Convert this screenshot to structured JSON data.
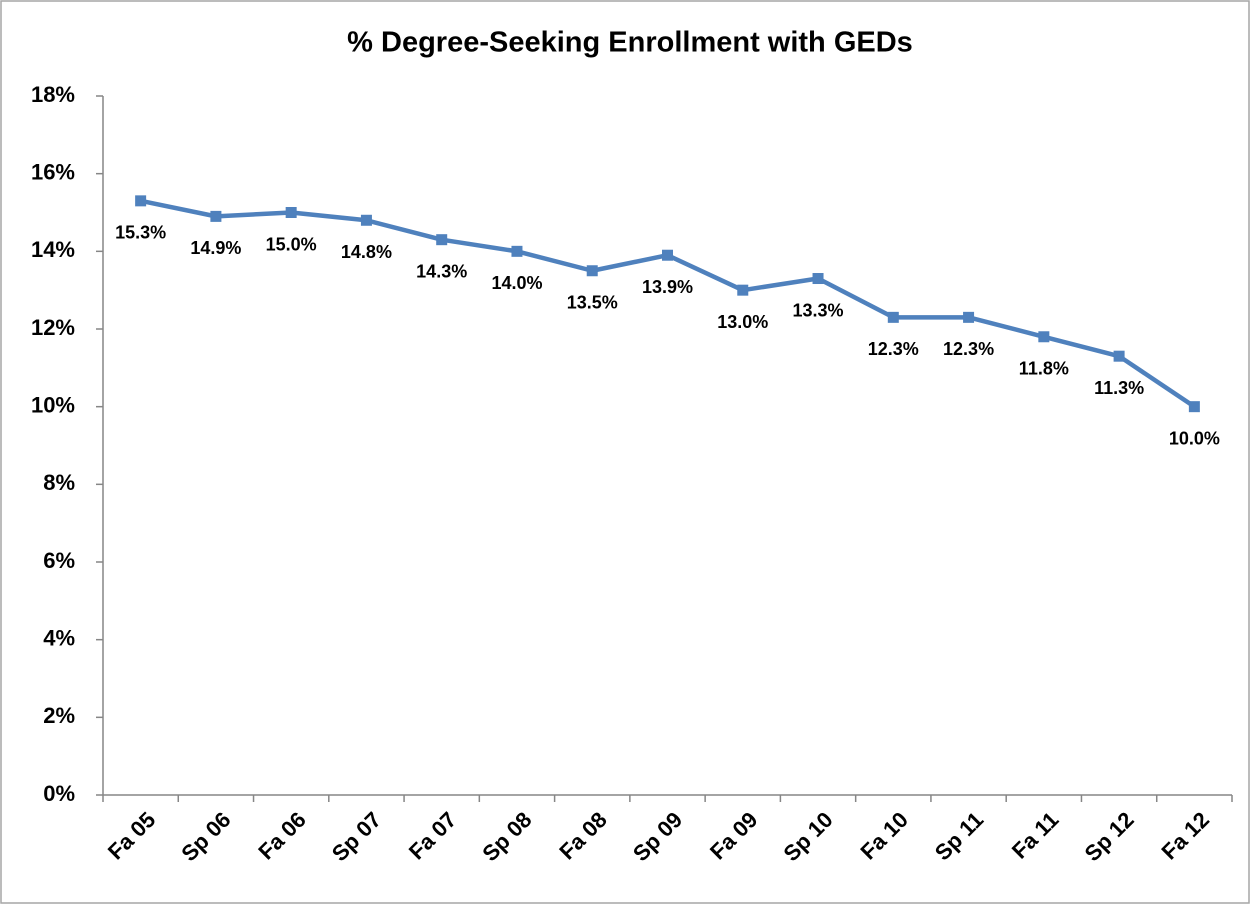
{
  "chart_data": {
    "type": "line",
    "title": "% Degree-Seeking Enrollment with GEDs",
    "categories": [
      "Fa 05",
      "Sp 06",
      "Fa 06",
      "Sp 07",
      "Fa 07",
      "Sp 08",
      "Fa 08",
      "Sp 09",
      "Fa 09",
      "Sp 10",
      "Fa 10",
      "Sp 11",
      "Fa 11",
      "Sp 12",
      "Fa 12"
    ],
    "values": [
      15.3,
      14.9,
      15.0,
      14.8,
      14.3,
      14.0,
      13.5,
      13.9,
      13.0,
      13.3,
      12.3,
      12.3,
      11.8,
      11.3,
      10.0
    ],
    "value_labels": [
      "15.3%",
      "14.9%",
      "15.0%",
      "14.8%",
      "14.3%",
      "14.0%",
      "13.5%",
      "13.9%",
      "13.0%",
      "13.3%",
      "12.3%",
      "12.3%",
      "11.8%",
      "11.3%",
      "10.0%"
    ],
    "color": "#4f81bd",
    "ylim": [
      0,
      18
    ],
    "yticks": [
      {
        "value": 0,
        "label": "0%"
      },
      {
        "value": 2,
        "label": "2%"
      },
      {
        "value": 4,
        "label": "4%"
      },
      {
        "value": 6,
        "label": "6%"
      },
      {
        "value": 8,
        "label": "8%"
      },
      {
        "value": 10,
        "label": "10%"
      },
      {
        "value": 12,
        "label": "12%"
      },
      {
        "value": 14,
        "label": "14%"
      },
      {
        "value": 16,
        "label": "16%"
      },
      {
        "value": 18,
        "label": "18%"
      }
    ],
    "grid": false
  }
}
